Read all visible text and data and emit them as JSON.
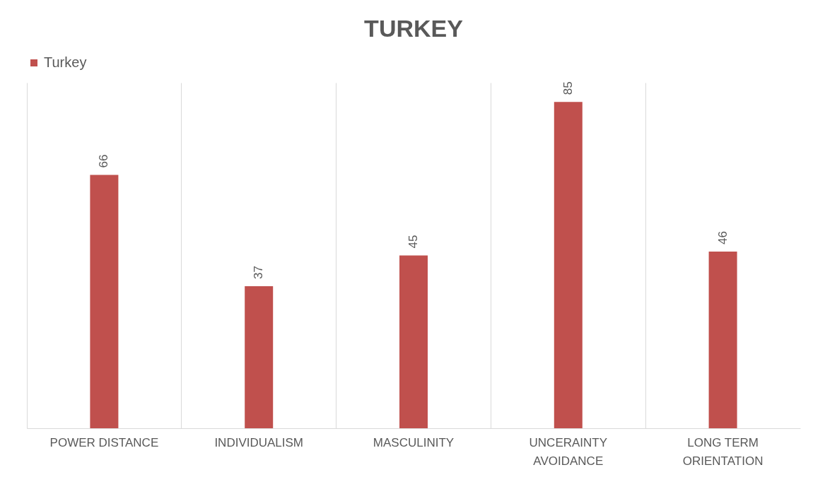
{
  "chart_data": {
    "type": "bar",
    "title": "TURKEY",
    "categories": [
      "POWER DISTANCE",
      "INDIVIDUALISM",
      "MASCULINITY",
      "UNCERAINTY AVOIDANCE",
      "LONG TERM ORIENTATION"
    ],
    "series": [
      {
        "name": "Turkey",
        "color": "#c0504d",
        "values": [
          66,
          37,
          45,
          85,
          46
        ]
      }
    ],
    "data_labels": true,
    "grid": "x",
    "legend": "top",
    "tick_labels": "x"
  }
}
